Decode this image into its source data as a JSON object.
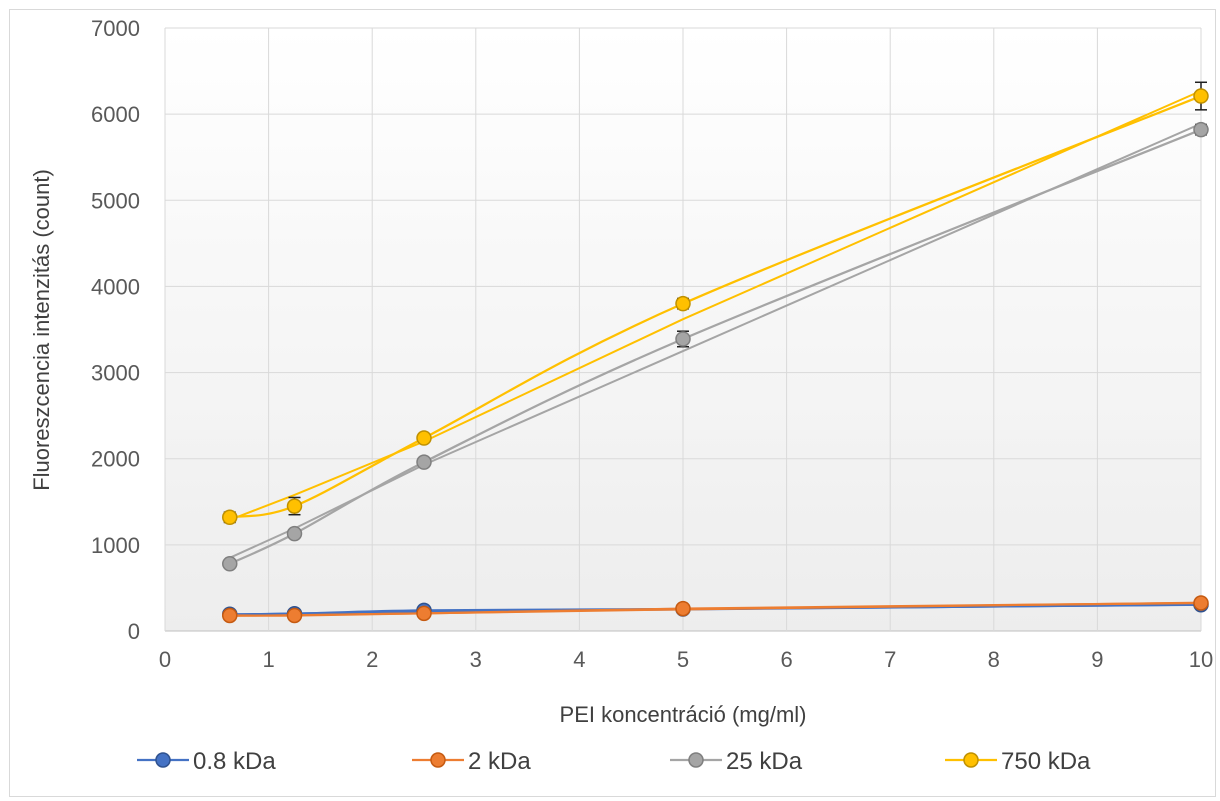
{
  "chart_data": {
    "type": "line",
    "xlabel": "PEI koncentráció (mg/ml)",
    "ylabel": "Fluoreszcencia intenzitás (count)",
    "xlim": [
      0,
      10
    ],
    "ylim": [
      0,
      7000
    ],
    "x_ticks": [
      "0",
      "1",
      "2",
      "3",
      "4",
      "5",
      "6",
      "7",
      "8",
      "9",
      "10"
    ],
    "y_ticks": [
      "0",
      "1000",
      "2000",
      "3000",
      "4000",
      "5000",
      "6000",
      "7000"
    ],
    "grid": true,
    "legend_position": "bottom",
    "x": [
      0.625,
      1.25,
      2.5,
      5,
      10
    ],
    "series": [
      {
        "name": "0.8 kDa",
        "color": "#4472c4",
        "edge": "#2f528f",
        "values": [
          195,
          200,
          240,
          255,
          305
        ],
        "errors": [
          10,
          10,
          10,
          10,
          10
        ],
        "trend": [
          190,
          205,
          225,
          250,
          305
        ]
      },
      {
        "name": "2 kDa",
        "color": "#ed7d31",
        "edge": "#c55a11",
        "values": [
          180,
          180,
          205,
          260,
          325
        ],
        "errors": [
          10,
          10,
          10,
          10,
          10
        ],
        "trend": [
          175,
          185,
          205,
          250,
          330
        ]
      },
      {
        "name": "25 kDa",
        "color": "#a5a5a5",
        "edge": "#7f7f7f",
        "values": [
          780,
          1130,
          1960,
          3390,
          5820
        ],
        "errors": [
          40,
          40,
          40,
          90,
          60
        ],
        "trend": [
          850,
          1190,
          1930,
          3250,
          5890
        ]
      },
      {
        "name": "750 kDa",
        "color": "#ffc000",
        "edge": "#bf9000",
        "values": [
          1320,
          1450,
          2240,
          3800,
          6210
        ],
        "errors": [
          60,
          100,
          40,
          60,
          160
        ],
        "trend": [
          1290,
          1580,
          2200,
          3620,
          6270
        ]
      }
    ]
  }
}
